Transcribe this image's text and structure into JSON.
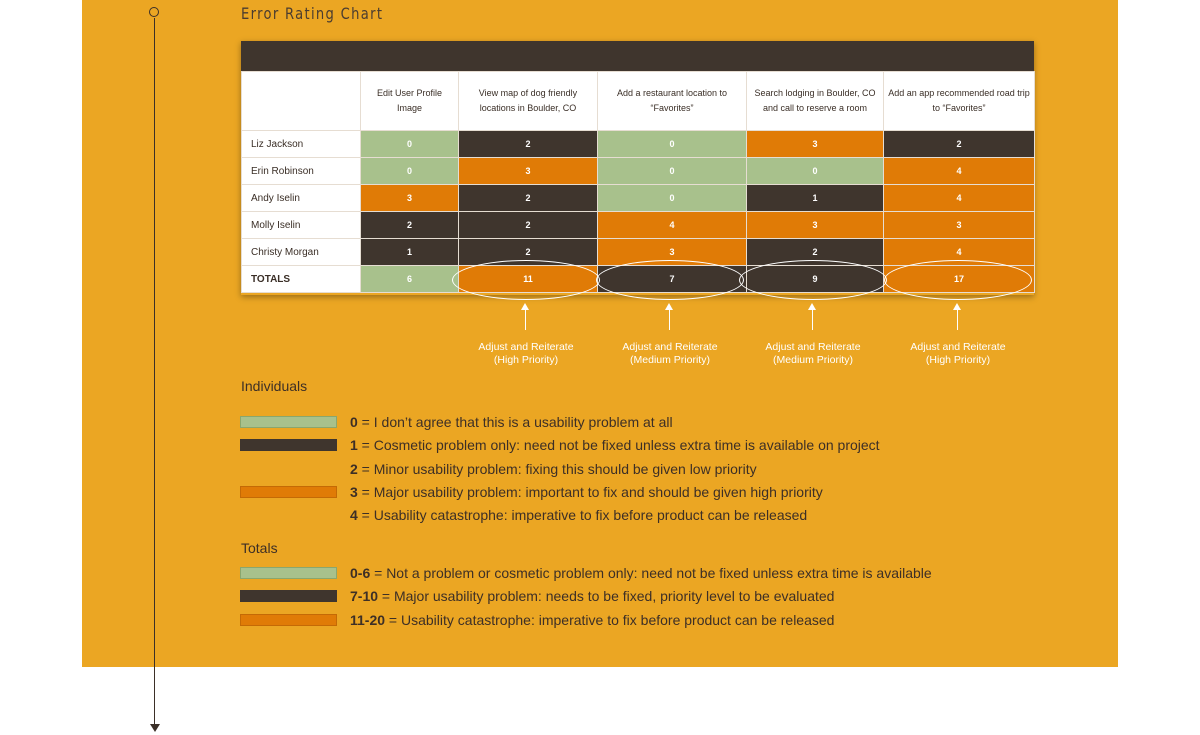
{
  "title": "Error Rating Chart",
  "colors": {
    "panel": "#eba623",
    "green": "#a8c18c",
    "dark": "#3f352d",
    "orange": "#e07b06"
  },
  "chart_data": {
    "type": "table",
    "title": "Error Rating Chart",
    "columns": [
      "Edit User Profile Image",
      "View map of dog friendly locations in Boulder, CO",
      "Add a restaurant location to “Favorites”",
      "Search lodging in Boulder, CO and call to reserve a room",
      "Add an app recommended road trip to “Favorites”"
    ],
    "rows": [
      {
        "name": "Liz Jackson",
        "values": [
          0,
          2,
          0,
          3,
          2
        ],
        "colors": [
          "green",
          "dark",
          "green",
          "orange",
          "dark"
        ]
      },
      {
        "name": "Erin Robinson",
        "values": [
          0,
          3,
          0,
          0,
          4
        ],
        "colors": [
          "green",
          "orange",
          "green",
          "green",
          "orange"
        ]
      },
      {
        "name": "Andy Iselin",
        "values": [
          3,
          2,
          0,
          1,
          4
        ],
        "colors": [
          "orange",
          "dark",
          "green",
          "dark",
          "orange"
        ]
      },
      {
        "name": "Molly Iselin",
        "values": [
          2,
          2,
          4,
          3,
          3
        ],
        "colors": [
          "dark",
          "dark",
          "orange",
          "orange",
          "orange"
        ]
      },
      {
        "name": "Christy Morgan",
        "values": [
          1,
          2,
          3,
          2,
          4
        ],
        "colors": [
          "dark",
          "dark",
          "orange",
          "dark",
          "orange"
        ]
      }
    ],
    "totals": {
      "name": "TOTALS",
      "values": [
        6,
        11,
        7,
        9,
        17
      ],
      "colors": [
        "green",
        "orange",
        "dark",
        "dark",
        "orange"
      ]
    },
    "annotations": [
      {
        "column": 1,
        "text": "Adjust and Reiterate",
        "priority": "(High Priority)"
      },
      {
        "column": 2,
        "text": "Adjust and Reiterate",
        "priority": "(Medium Priority)"
      },
      {
        "column": 3,
        "text": "Adjust and Reiterate",
        "priority": "(Medium Priority)"
      },
      {
        "column": 4,
        "text": "Adjust and Reiterate",
        "priority": "(High Priority)"
      }
    ]
  },
  "legend": {
    "individuals_title": "Individuals",
    "individuals": [
      {
        "swatch": "green",
        "key": "0",
        "text": " = I don’t agree that this is a usability problem at all"
      },
      {
        "swatch": "dark",
        "key": "1",
        "text": " = Cosmetic problem only: need not be fixed unless extra time is available on project"
      },
      {
        "swatch": "none",
        "key": "2",
        "text": " = Minor usability problem: fixing this should be given low priority"
      },
      {
        "swatch": "orange",
        "key": "3",
        "text": " = Major usability problem: important to fix and should be given high priority"
      },
      {
        "swatch": "none",
        "key": "4",
        "text": " = Usability catastrophe: imperative to fix before product can be released"
      }
    ],
    "totals_title": "Totals",
    "totals": [
      {
        "swatch": "green",
        "key": "0-6",
        "text": " = Not a problem or cosmetic problem only: need not be fixed unless extra time is available"
      },
      {
        "swatch": "dark",
        "key": "7-10",
        "text": " = Major usability problem: needs to be fixed, priority level to be evaluated"
      },
      {
        "swatch": "orange",
        "key": "11-20",
        "text": " = Usability catastrophe: imperative to fix before product can be released"
      }
    ]
  }
}
